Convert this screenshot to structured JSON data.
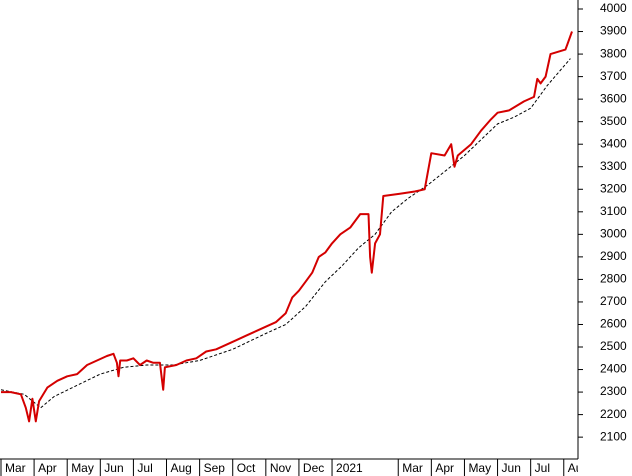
{
  "chart_data": {
    "type": "line",
    "xlim": [
      -0.03,
      17.43
    ],
    "xticks": [
      {
        "value": 0,
        "label": "Mar"
      },
      {
        "value": 1,
        "label": "Apr"
      },
      {
        "value": 2,
        "label": "May"
      },
      {
        "value": 3,
        "label": "Jun"
      },
      {
        "value": 4,
        "label": "Jul"
      },
      {
        "value": 5,
        "label": "Aug"
      },
      {
        "value": 6,
        "label": "Sep"
      },
      {
        "value": 7,
        "label": "Oct"
      },
      {
        "value": 8,
        "label": "Nov"
      },
      {
        "value": 9,
        "label": "Dec"
      },
      {
        "value": 10,
        "label": "2021"
      },
      {
        "value": 12,
        "label": "Mar"
      },
      {
        "value": 13,
        "label": "Apr"
      },
      {
        "value": 14,
        "label": "May"
      },
      {
        "value": 15,
        "label": "Jun"
      },
      {
        "value": 16,
        "label": "Jul"
      },
      {
        "value": 17,
        "label": "Aug"
      }
    ],
    "ylim": [
      2003,
      4040
    ],
    "yticks": [
      2100,
      2200,
      2300,
      2400,
      2500,
      2600,
      2700,
      2800,
      2900,
      3000,
      3100,
      3200,
      3300,
      3400,
      3500,
      3600,
      3700,
      3800,
      3900,
      4000
    ],
    "series": [
      {
        "color": "#d40000",
        "dash": false,
        "x": [
          0,
          0.3,
          0.6,
          0.75,
          0.85,
          0.95,
          1.05,
          1.15,
          1.4,
          1.7,
          2.0,
          2.3,
          2.6,
          2.9,
          3.2,
          3.4,
          3.5,
          3.55,
          3.6,
          3.8,
          4.0,
          4.2,
          4.4,
          4.6,
          4.8,
          4.9,
          4.95,
          5.3,
          5.6,
          5.9,
          6.2,
          6.5,
          6.8,
          7.1,
          7.4,
          7.7,
          8.0,
          8.3,
          8.6,
          8.8,
          9.0,
          9.2,
          9.4,
          9.6,
          9.8,
          10.0,
          10.25,
          10.55,
          10.85,
          11.1,
          11.15,
          11.2,
          11.3,
          11.45,
          11.55,
          12.05,
          12.5,
          12.8,
          13.0,
          13.4,
          13.6,
          13.7,
          13.8,
          14.2,
          14.5,
          14.8,
          15.0,
          15.35,
          15.8,
          16.1,
          16.2,
          16.3,
          16.45,
          16.6,
          17.05,
          17.1,
          17.25
        ],
        "values": [
          2300,
          2300,
          2290,
          2230,
          2170,
          2270,
          2170,
          2260,
          2320,
          2350,
          2370,
          2380,
          2420,
          2440,
          2460,
          2470,
          2430,
          2370,
          2440,
          2440,
          2450,
          2420,
          2440,
          2430,
          2430,
          2310,
          2410,
          2420,
          2440,
          2450,
          2480,
          2490,
          2510,
          2530,
          2550,
          2570,
          2590,
          2610,
          2650,
          2720,
          2750,
          2790,
          2830,
          2900,
          2920,
          2960,
          3000,
          3030,
          3090,
          3090,
          2900,
          2830,
          2960,
          3000,
          3170,
          3180,
          3190,
          3200,
          3360,
          3350,
          3400,
          3300,
          3350,
          3400,
          3460,
          3510,
          3540,
          3550,
          3590,
          3610,
          3690,
          3670,
          3700,
          3800,
          3820,
          3840,
          3900
        ]
      },
      {
        "color": "#000000",
        "dash": true,
        "x": [
          0,
          0.7,
          1.2,
          1.6,
          2.3,
          3,
          3.7,
          4.4,
          5.2,
          6,
          7,
          8,
          8.6,
          9.2,
          9.8,
          10.3,
          10.8,
          11.3,
          11.8,
          12.3,
          12.9,
          13.5,
          14,
          14.5,
          15,
          15.5,
          16,
          16.5,
          17.2
        ],
        "values": [
          2310,
          2290,
          2230,
          2280,
          2330,
          2380,
          2410,
          2420,
          2420,
          2440,
          2490,
          2560,
          2600,
          2680,
          2790,
          2860,
          2940,
          3000,
          3100,
          3160,
          3220,
          3290,
          3350,
          3420,
          3490,
          3520,
          3560,
          3660,
          3780
        ]
      }
    ]
  }
}
